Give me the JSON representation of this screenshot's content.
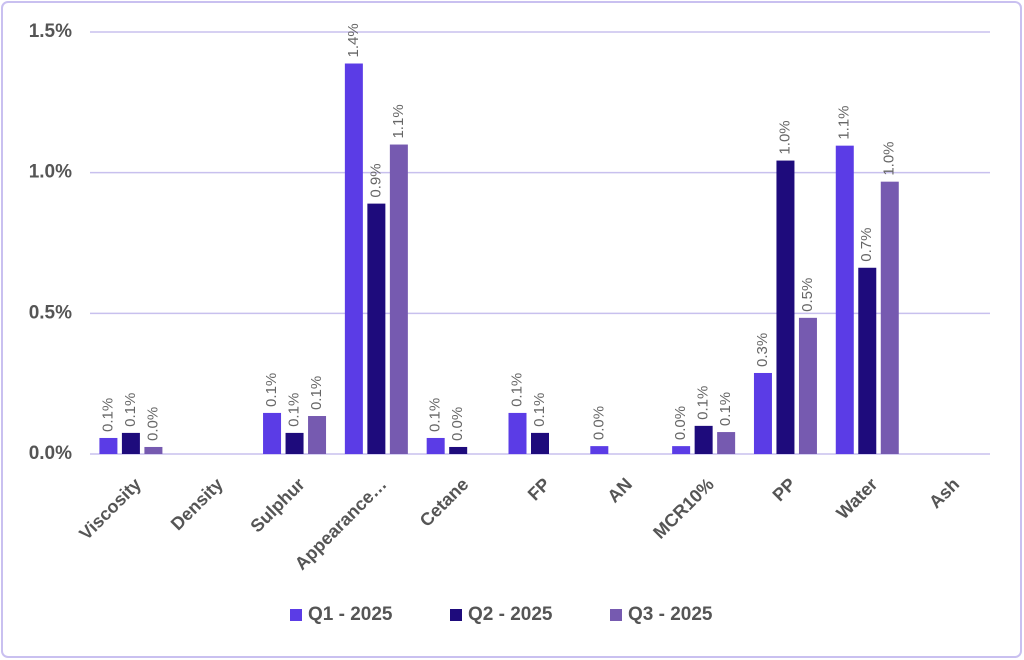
{
  "chart_data": {
    "type": "bar",
    "categories": [
      "Viscosity",
      "Density",
      "Sulphur",
      "Appearance…",
      "Cetane",
      "FP",
      "AN",
      "MCR10%",
      "PP",
      "Water",
      "Ash"
    ],
    "series": [
      {
        "name": "Q1 - 2025",
        "color": "#5b3ce6",
        "values": [
          0.057,
          null,
          0.146,
          1.388,
          0.057,
          0.146,
          0.028,
          0.028,
          0.288,
          1.096,
          null
        ],
        "value_labels": [
          "0.1%",
          null,
          "0.1%",
          "1.4%",
          "0.1%",
          "0.1%",
          "0.0%",
          "0.0%",
          "0.3%",
          "1.1%",
          null
        ]
      },
      {
        "name": "Q2 - 2025",
        "color": "#1e0b7c",
        "values": [
          0.075,
          null,
          0.075,
          0.89,
          0.025,
          0.075,
          null,
          0.1,
          1.043,
          0.662,
          null
        ],
        "value_labels": [
          "0.1%",
          null,
          "0.1%",
          "0.9%",
          "0.0%",
          "0.1%",
          null,
          "0.1%",
          "1.0%",
          "0.7%",
          null
        ]
      },
      {
        "name": "Q3 - 2025",
        "color": "#765ab0",
        "values": [
          0.025,
          null,
          0.135,
          1.1,
          null,
          null,
          null,
          0.078,
          0.484,
          0.968,
          null
        ],
        "value_labels": [
          "0.0%",
          null,
          "0.1%",
          "1.1%",
          null,
          null,
          null,
          "0.1%",
          "0.5%",
          "1.0%",
          null
        ]
      }
    ],
    "ylim": [
      0,
      1.5
    ],
    "yticks": [
      {
        "value": 0,
        "label": "0.0%"
      },
      {
        "value": 0.5,
        "label": "0.5%"
      },
      {
        "value": 1.0,
        "label": "1.0%"
      },
      {
        "value": 1.5,
        "label": "1.5%"
      }
    ],
    "grid": true,
    "legend": "bottom"
  }
}
